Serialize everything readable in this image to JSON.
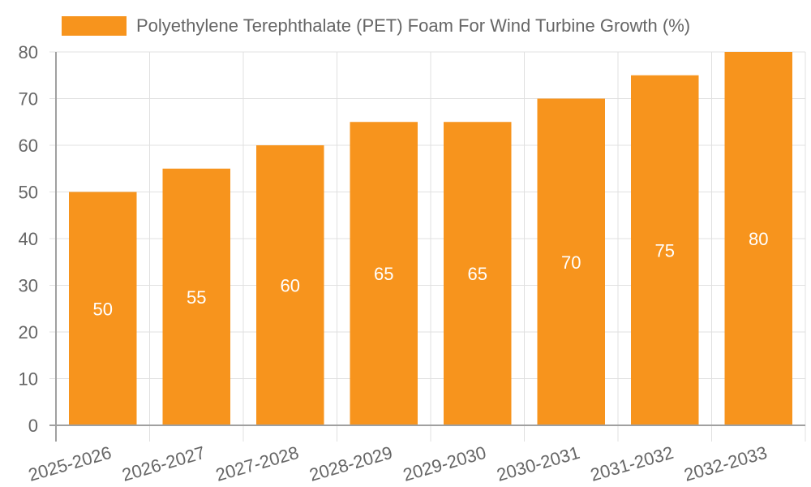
{
  "chart_data": {
    "type": "bar",
    "title": "",
    "legend": [
      {
        "label": "Polyethylene Terephthalate (PET) Foam For Wind Turbine Growth (%)",
        "color": "#f7941d"
      }
    ],
    "legend_position": "top",
    "categories": [
      "2025-2026",
      "2026-2027",
      "2027-2028",
      "2028-2029",
      "2029-2030",
      "2030-2031",
      "2031-2032",
      "2032-2033"
    ],
    "series": [
      {
        "name": "Polyethylene Terephthalate (PET) Foam For Wind Turbine Growth (%)",
        "values": [
          50,
          55,
          60,
          65,
          65,
          70,
          75,
          80
        ],
        "color": "#f7941d"
      }
    ],
    "xlabel": "",
    "ylabel": "",
    "ylim": [
      0,
      80
    ],
    "yticks": [
      0,
      10,
      20,
      30,
      40,
      50,
      60,
      70,
      80
    ],
    "grid": true,
    "data_labels": true
  },
  "legend": {
    "label": "Polyethylene Terephthalate (PET) Foam For Wind Turbine Growth (%)"
  }
}
